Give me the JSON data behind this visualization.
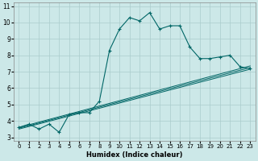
{
  "xlabel": "Humidex (Indice chaleur)",
  "bg_color": "#cce8e8",
  "grid_color": "#aacccc",
  "line_color": "#006666",
  "xlim": [
    -0.5,
    23.5
  ],
  "ylim": [
    2.8,
    11.2
  ],
  "xticks": [
    0,
    1,
    2,
    3,
    4,
    5,
    6,
    7,
    8,
    9,
    10,
    11,
    12,
    13,
    14,
    15,
    16,
    17,
    18,
    19,
    20,
    21,
    22,
    23
  ],
  "yticks": [
    3,
    4,
    5,
    6,
    7,
    8,
    9,
    10,
    11
  ],
  "main_x": [
    0,
    1,
    2,
    3,
    4,
    5,
    6,
    7,
    8,
    9,
    10,
    11,
    12,
    13,
    14,
    15,
    16,
    17,
    18,
    19,
    20,
    21,
    22,
    23
  ],
  "main_y": [
    3.6,
    3.8,
    3.5,
    3.8,
    3.3,
    4.4,
    4.5,
    4.5,
    5.2,
    8.3,
    9.6,
    10.3,
    10.1,
    10.6,
    9.6,
    9.8,
    9.8,
    8.5,
    7.8,
    7.8,
    7.9,
    8.0,
    7.3,
    7.2
  ],
  "line1_x": [
    0,
    23
  ],
  "line1_y": [
    3.5,
    7.15
  ],
  "line2_x": [
    0,
    23
  ],
  "line2_y": [
    3.55,
    7.25
  ],
  "line3_x": [
    0,
    23
  ],
  "line3_y": [
    3.6,
    7.35
  ]
}
